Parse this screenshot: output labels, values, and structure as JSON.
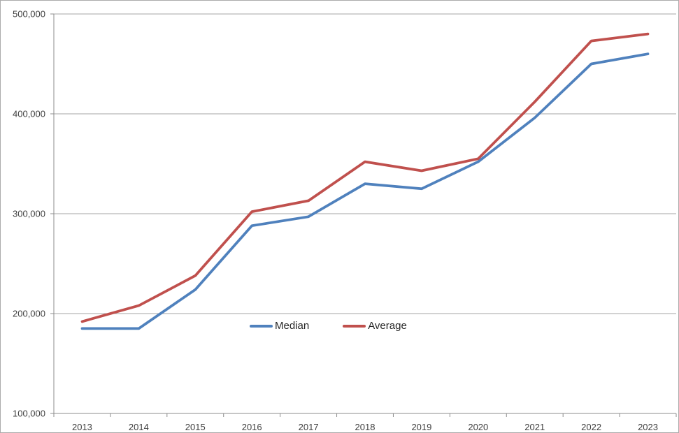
{
  "chart_data": {
    "type": "line",
    "title": "",
    "xlabel": "",
    "ylabel": "",
    "categories": [
      "2013",
      "2014",
      "2015",
      "2016",
      "2017",
      "2018",
      "2019",
      "2020",
      "2021",
      "2022",
      "2023"
    ],
    "series": [
      {
        "name": "Median",
        "color": "#4F81BD",
        "values": [
          185000,
          185000,
          224000,
          288000,
          297000,
          330000,
          325000,
          352000,
          396000,
          450000,
          460000
        ]
      },
      {
        "name": "Average",
        "color": "#C0504D",
        "values": [
          192000,
          208000,
          238000,
          302000,
          313000,
          352000,
          343000,
          355000,
          412000,
          473000,
          480000
        ]
      }
    ],
    "ylim": [
      100000,
      500000
    ],
    "ytick_interval": 100000,
    "yticks": [
      {
        "value": 500000,
        "label": "500,000"
      },
      {
        "value": 400000,
        "label": "400,000"
      },
      {
        "value": 300000,
        "label": "300,000"
      },
      {
        "value": 200000,
        "label": "200,000"
      },
      {
        "value": 100000,
        "label": "100,000"
      }
    ],
    "grid": true,
    "legend_position": "center-inside",
    "colors": {
      "grid": "#A6A6A6",
      "axis": "#8C8C8C",
      "text": "#404040",
      "background": "#FFFFFF",
      "frame_border": "#ABABAB"
    }
  }
}
